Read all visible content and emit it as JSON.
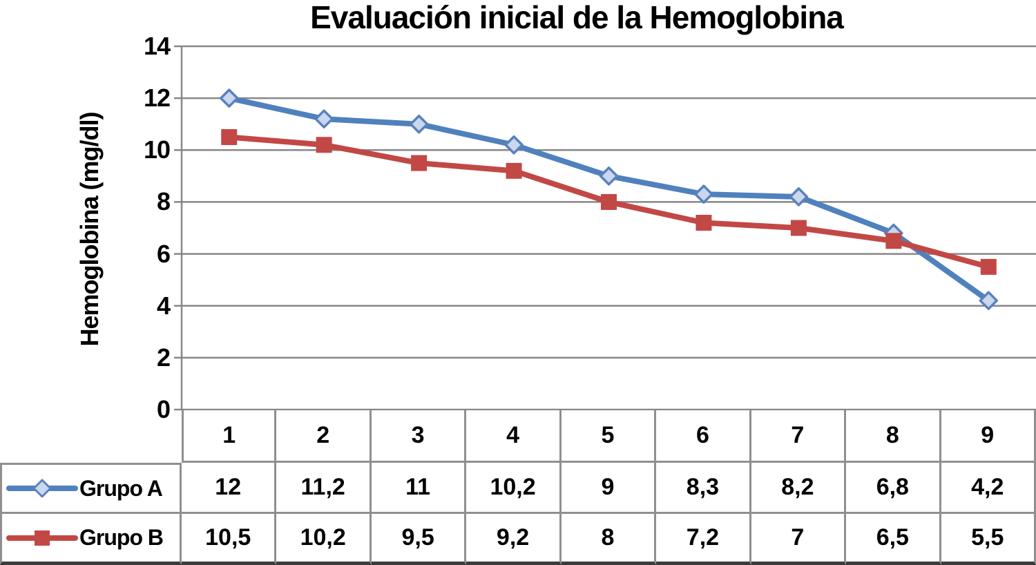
{
  "chart_data": {
    "type": "line",
    "title": "Evaluación inicial de la Hemoglobina",
    "ylabel": "Hemoglobina (mg/dl)",
    "xlabel": "",
    "categories": [
      "1",
      "2",
      "3",
      "4",
      "5",
      "6",
      "7",
      "8",
      "9"
    ],
    "series": [
      {
        "name": "Grupo A",
        "marker": "diamond",
        "line_color": "#4F81BD",
        "marker_fill": "#C9D7EF",
        "marker_stroke": "#5A81BC",
        "values": [
          12,
          11.2,
          11,
          10.2,
          9,
          8.3,
          8.2,
          6.8,
          4.2
        ]
      },
      {
        "name": "Grupo B",
        "marker": "square",
        "line_color": "#C24845",
        "marker_fill": "#C24845",
        "marker_stroke": "#C24845",
        "values": [
          10.5,
          10.2,
          9.5,
          9.2,
          8,
          7.2,
          7,
          6.5,
          5.5
        ]
      }
    ],
    "ylim": [
      0,
      14
    ],
    "y_ticks": [
      0,
      2,
      4,
      6,
      8,
      10,
      12,
      14
    ],
    "grid": "horizontal-only",
    "gridline_color": "#878787",
    "legend_position": "table-left",
    "decimal_separator": ",",
    "table_shown": true
  }
}
